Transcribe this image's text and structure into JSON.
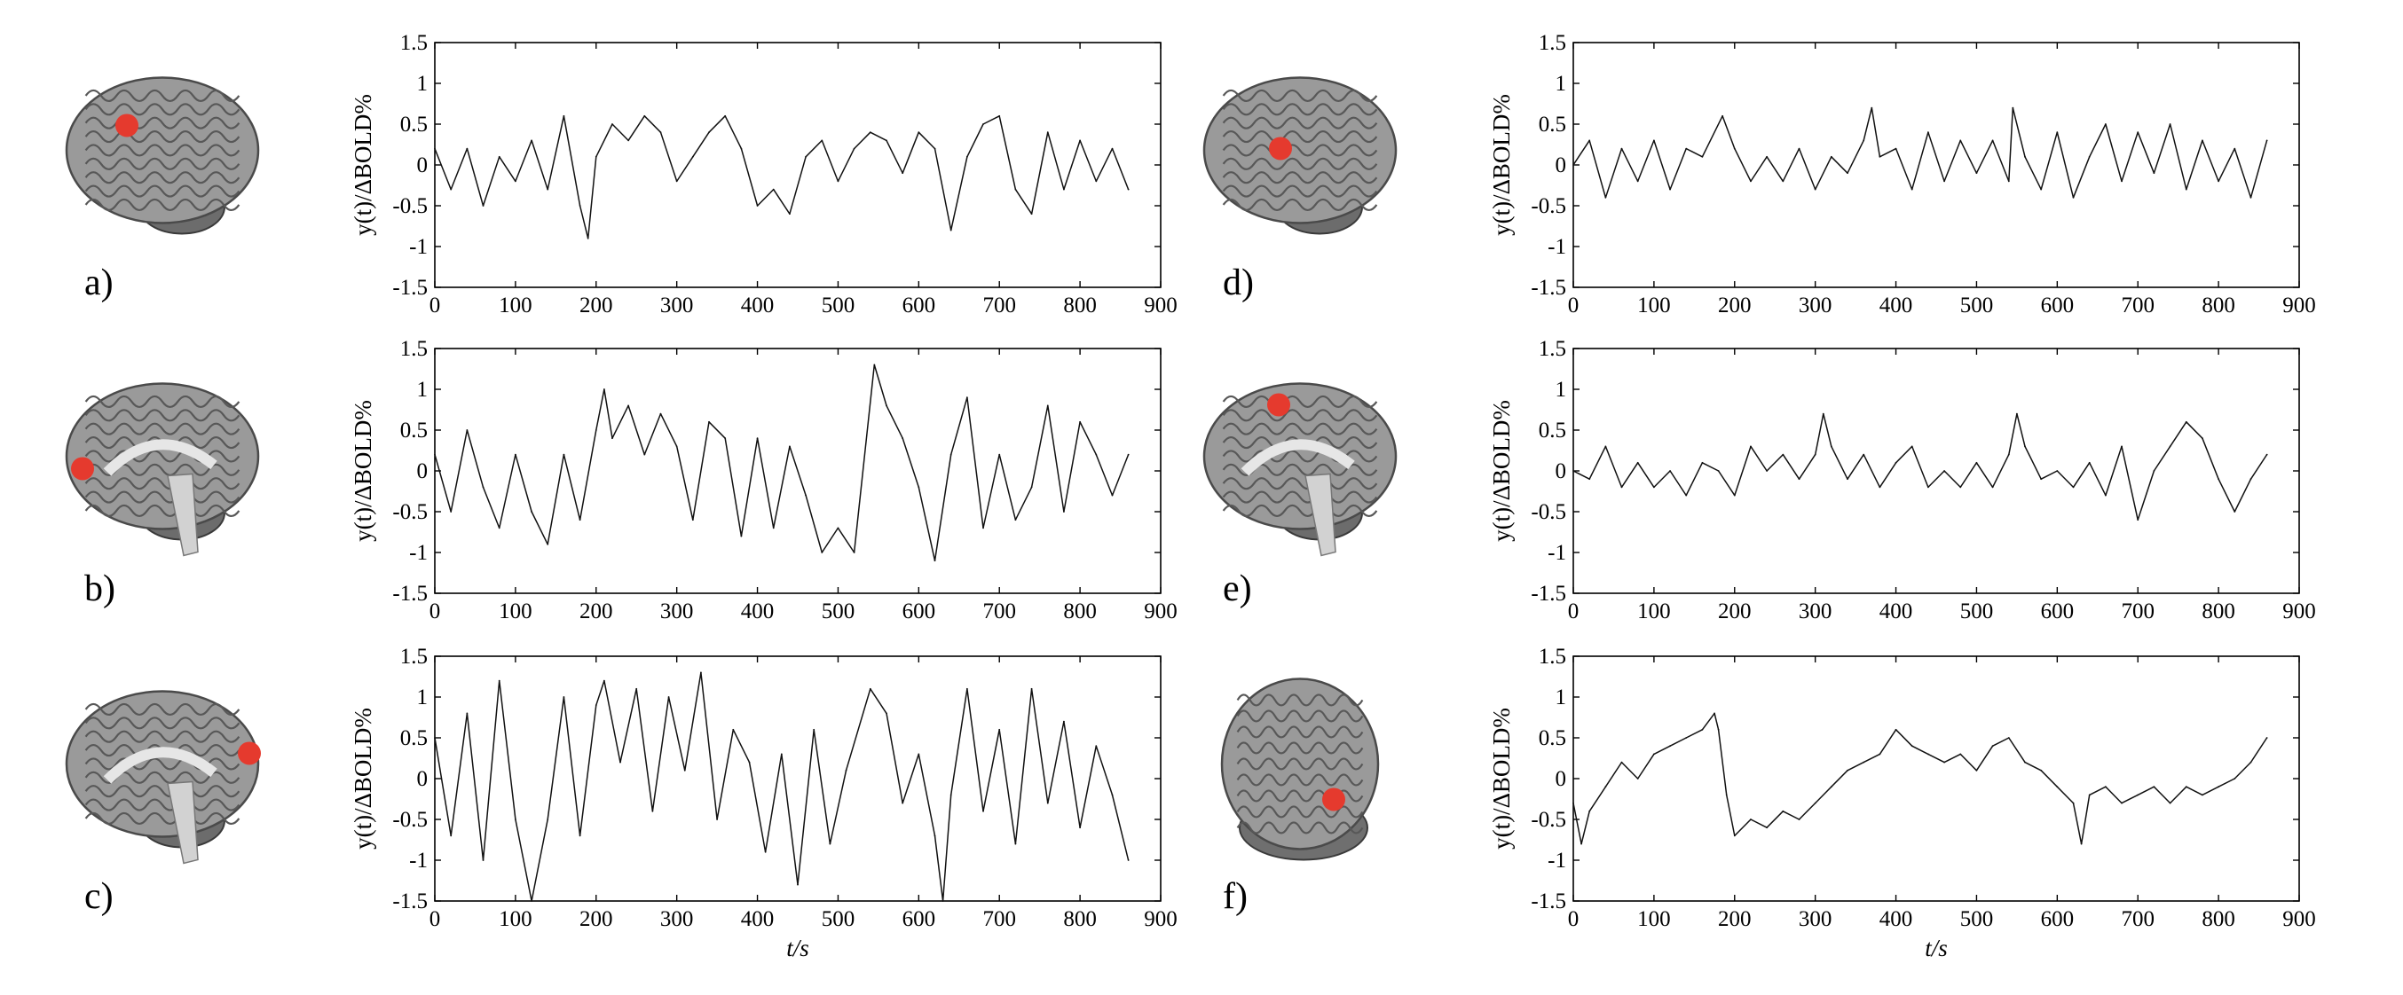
{
  "chart_data": [
    {
      "type": "line",
      "panel_label": "a)",
      "roi": {
        "view": "lateral-left",
        "marker_color": "#e53a2e"
      },
      "xlabel": "",
      "ylabel": "y(t)/ΔBOLD%",
      "xlim": [
        0,
        900
      ],
      "ylim": [
        -1.5,
        1.5
      ],
      "xticks": [
        0,
        100,
        200,
        300,
        400,
        500,
        600,
        700,
        800,
        900
      ],
      "yticks": [
        -1.5,
        -1,
        -0.5,
        0,
        0.5,
        1,
        1.5
      ],
      "x": [
        0,
        20,
        40,
        60,
        80,
        100,
        120,
        140,
        160,
        180,
        190,
        200,
        220,
        240,
        260,
        280,
        300,
        320,
        340,
        360,
        380,
        400,
        420,
        440,
        460,
        480,
        500,
        520,
        540,
        560,
        580,
        600,
        620,
        640,
        660,
        680,
        700,
        720,
        740,
        760,
        780,
        800,
        820,
        840,
        860
      ],
      "y": [
        0.2,
        -0.3,
        0.2,
        -0.5,
        0.1,
        -0.2,
        0.3,
        -0.3,
        0.6,
        -0.5,
        -0.9,
        0.1,
        0.5,
        0.3,
        0.6,
        0.4,
        -0.2,
        0.1,
        0.4,
        0.6,
        0.2,
        -0.5,
        -0.3,
        -0.6,
        0.1,
        0.3,
        -0.2,
        0.2,
        0.4,
        0.3,
        -0.1,
        0.4,
        0.2,
        -0.8,
        0.1,
        0.5,
        0.6,
        -0.3,
        -0.6,
        0.4,
        -0.3,
        0.3,
        -0.2,
        0.2,
        -0.3
      ]
    },
    {
      "type": "line",
      "panel_label": "b)",
      "roi": {
        "view": "medial-frontal",
        "marker_color": "#e53a2e"
      },
      "xlabel": "",
      "ylabel": "y(t)/ΔBOLD%",
      "xlim": [
        0,
        900
      ],
      "ylim": [
        -1.5,
        1.5
      ],
      "xticks": [
        0,
        100,
        200,
        300,
        400,
        500,
        600,
        700,
        800,
        900
      ],
      "yticks": [
        -1.5,
        -1,
        -0.5,
        0,
        0.5,
        1,
        1.5
      ],
      "x": [
        0,
        20,
        40,
        60,
        80,
        100,
        120,
        140,
        160,
        180,
        200,
        210,
        220,
        240,
        260,
        280,
        300,
        320,
        340,
        360,
        380,
        400,
        420,
        440,
        460,
        480,
        500,
        520,
        545,
        560,
        580,
        600,
        620,
        640,
        660,
        680,
        700,
        720,
        740,
        760,
        780,
        800,
        820,
        840,
        860
      ],
      "y": [
        0.2,
        -0.5,
        0.5,
        -0.2,
        -0.7,
        0.2,
        -0.5,
        -0.9,
        0.2,
        -0.6,
        0.5,
        1.0,
        0.4,
        0.8,
        0.2,
        0.7,
        0.3,
        -0.6,
        0.6,
        0.4,
        -0.8,
        0.4,
        -0.7,
        0.3,
        -0.3,
        -1.0,
        -0.7,
        -1.0,
        1.3,
        0.8,
        0.4,
        -0.2,
        -1.1,
        0.2,
        0.9,
        -0.7,
        0.2,
        -0.6,
        -0.2,
        0.8,
        -0.5,
        0.6,
        0.2,
        -0.3,
        0.2
      ]
    },
    {
      "type": "line",
      "panel_label": "c)",
      "roi": {
        "view": "medial-occipital",
        "marker_color": "#e53a2e"
      },
      "xlabel": "t/s",
      "ylabel": "y(t)/ΔBOLD%",
      "xlim": [
        0,
        900
      ],
      "ylim": [
        -1.5,
        1.5
      ],
      "xticks": [
        0,
        100,
        200,
        300,
        400,
        500,
        600,
        700,
        800,
        900
      ],
      "yticks": [
        -1.5,
        -1,
        -0.5,
        0,
        0.5,
        1,
        1.5
      ],
      "x": [
        0,
        20,
        40,
        60,
        80,
        100,
        120,
        140,
        160,
        180,
        200,
        210,
        230,
        250,
        270,
        290,
        310,
        330,
        350,
        370,
        390,
        410,
        430,
        450,
        470,
        490,
        510,
        540,
        560,
        580,
        600,
        620,
        630,
        640,
        660,
        680,
        700,
        720,
        740,
        760,
        780,
        800,
        820,
        840,
        860
      ],
      "y": [
        0.5,
        -0.7,
        0.8,
        -1.0,
        1.2,
        -0.5,
        -1.5,
        -0.5,
        1.0,
        -0.7,
        0.9,
        1.2,
        0.2,
        1.1,
        -0.4,
        1.0,
        0.1,
        1.3,
        -0.5,
        0.6,
        0.2,
        -0.9,
        0.3,
        -1.3,
        0.6,
        -0.8,
        0.1,
        1.1,
        0.8,
        -0.3,
        0.3,
        -0.7,
        -1.5,
        -0.2,
        1.1,
        -0.4,
        0.6,
        -0.8,
        1.1,
        -0.3,
        0.7,
        -0.6,
        0.4,
        -0.2,
        -1.0
      ]
    },
    {
      "type": "line",
      "panel_label": "d)",
      "roi": {
        "view": "lateral-left",
        "marker_color": "#e53a2e"
      },
      "xlabel": "",
      "ylabel": "y(t)/ΔBOLD%",
      "xlim": [
        0,
        900
      ],
      "ylim": [
        -1.5,
        1.5
      ],
      "xticks": [
        0,
        100,
        200,
        300,
        400,
        500,
        600,
        700,
        800,
        900
      ],
      "yticks": [
        -1.5,
        -1,
        -0.5,
        0,
        0.5,
        1,
        1.5
      ],
      "x": [
        0,
        20,
        40,
        60,
        80,
        100,
        120,
        140,
        160,
        185,
        200,
        220,
        240,
        260,
        280,
        300,
        320,
        340,
        360,
        370,
        380,
        400,
        420,
        440,
        460,
        480,
        500,
        520,
        540,
        545,
        560,
        580,
        600,
        620,
        640,
        660,
        680,
        700,
        720,
        740,
        760,
        780,
        800,
        820,
        840,
        860
      ],
      "y": [
        0.0,
        0.3,
        -0.4,
        0.2,
        -0.2,
        0.3,
        -0.3,
        0.2,
        0.1,
        0.6,
        0.2,
        -0.2,
        0.1,
        -0.2,
        0.2,
        -0.3,
        0.1,
        -0.1,
        0.3,
        0.7,
        0.1,
        0.2,
        -0.3,
        0.4,
        -0.2,
        0.3,
        -0.1,
        0.3,
        -0.2,
        0.7,
        0.1,
        -0.3,
        0.4,
        -0.4,
        0.1,
        0.5,
        -0.2,
        0.4,
        -0.1,
        0.5,
        -0.3,
        0.3,
        -0.2,
        0.2,
        -0.4,
        0.3
      ]
    },
    {
      "type": "line",
      "panel_label": "e)",
      "roi": {
        "view": "medial-parietal",
        "marker_color": "#e53a2e"
      },
      "xlabel": "",
      "ylabel": "y(t)/ΔBOLD%",
      "xlim": [
        0,
        900
      ],
      "ylim": [
        -1.5,
        1.5
      ],
      "xticks": [
        0,
        100,
        200,
        300,
        400,
        500,
        600,
        700,
        800,
        900
      ],
      "yticks": [
        -1.5,
        -1,
        -0.5,
        0,
        0.5,
        1,
        1.5
      ],
      "x": [
        0,
        20,
        40,
        60,
        80,
        100,
        120,
        140,
        160,
        180,
        200,
        220,
        240,
        260,
        280,
        300,
        310,
        320,
        340,
        360,
        380,
        400,
        420,
        440,
        460,
        480,
        500,
        520,
        540,
        550,
        560,
        580,
        600,
        620,
        640,
        660,
        680,
        700,
        720,
        740,
        760,
        780,
        800,
        820,
        840,
        860
      ],
      "y": [
        0.0,
        -0.1,
        0.3,
        -0.2,
        0.1,
        -0.2,
        0.0,
        -0.3,
        0.1,
        0.0,
        -0.3,
        0.3,
        0.0,
        0.2,
        -0.1,
        0.2,
        0.7,
        0.3,
        -0.1,
        0.2,
        -0.2,
        0.1,
        0.3,
        -0.2,
        0.0,
        -0.2,
        0.1,
        -0.2,
        0.2,
        0.7,
        0.3,
        -0.1,
        0.0,
        -0.2,
        0.1,
        -0.3,
        0.3,
        -0.6,
        0.0,
        0.3,
        0.6,
        0.4,
        -0.1,
        -0.5,
        -0.1,
        0.2
      ]
    },
    {
      "type": "line",
      "panel_label": "f)",
      "roi": {
        "view": "posterior",
        "marker_color": "#e53a2e"
      },
      "xlabel": "t/s",
      "ylabel": "y(t)/ΔBOLD%",
      "xlim": [
        0,
        900
      ],
      "ylim": [
        -1.5,
        1.5
      ],
      "xticks": [
        0,
        100,
        200,
        300,
        400,
        500,
        600,
        700,
        800,
        900
      ],
      "yticks": [
        -1.5,
        -1,
        -0.5,
        0,
        0.5,
        1,
        1.5
      ],
      "x": [
        0,
        10,
        20,
        40,
        60,
        80,
        100,
        120,
        140,
        160,
        175,
        180,
        190,
        200,
        220,
        240,
        260,
        280,
        300,
        320,
        340,
        360,
        380,
        400,
        420,
        440,
        460,
        480,
        500,
        520,
        540,
        560,
        580,
        600,
        620,
        630,
        640,
        660,
        680,
        700,
        720,
        740,
        760,
        780,
        800,
        820,
        840,
        860
      ],
      "y": [
        -0.3,
        -0.8,
        -0.4,
        -0.1,
        0.2,
        0.0,
        0.3,
        0.4,
        0.5,
        0.6,
        0.8,
        0.6,
        -0.2,
        -0.7,
        -0.5,
        -0.6,
        -0.4,
        -0.5,
        -0.3,
        -0.1,
        0.1,
        0.2,
        0.3,
        0.6,
        0.4,
        0.3,
        0.2,
        0.3,
        0.1,
        0.4,
        0.5,
        0.2,
        0.1,
        -0.1,
        -0.3,
        -0.8,
        -0.2,
        -0.1,
        -0.3,
        -0.2,
        -0.1,
        -0.3,
        -0.1,
        -0.2,
        -0.1,
        0.0,
        0.2,
        0.5
      ]
    }
  ]
}
